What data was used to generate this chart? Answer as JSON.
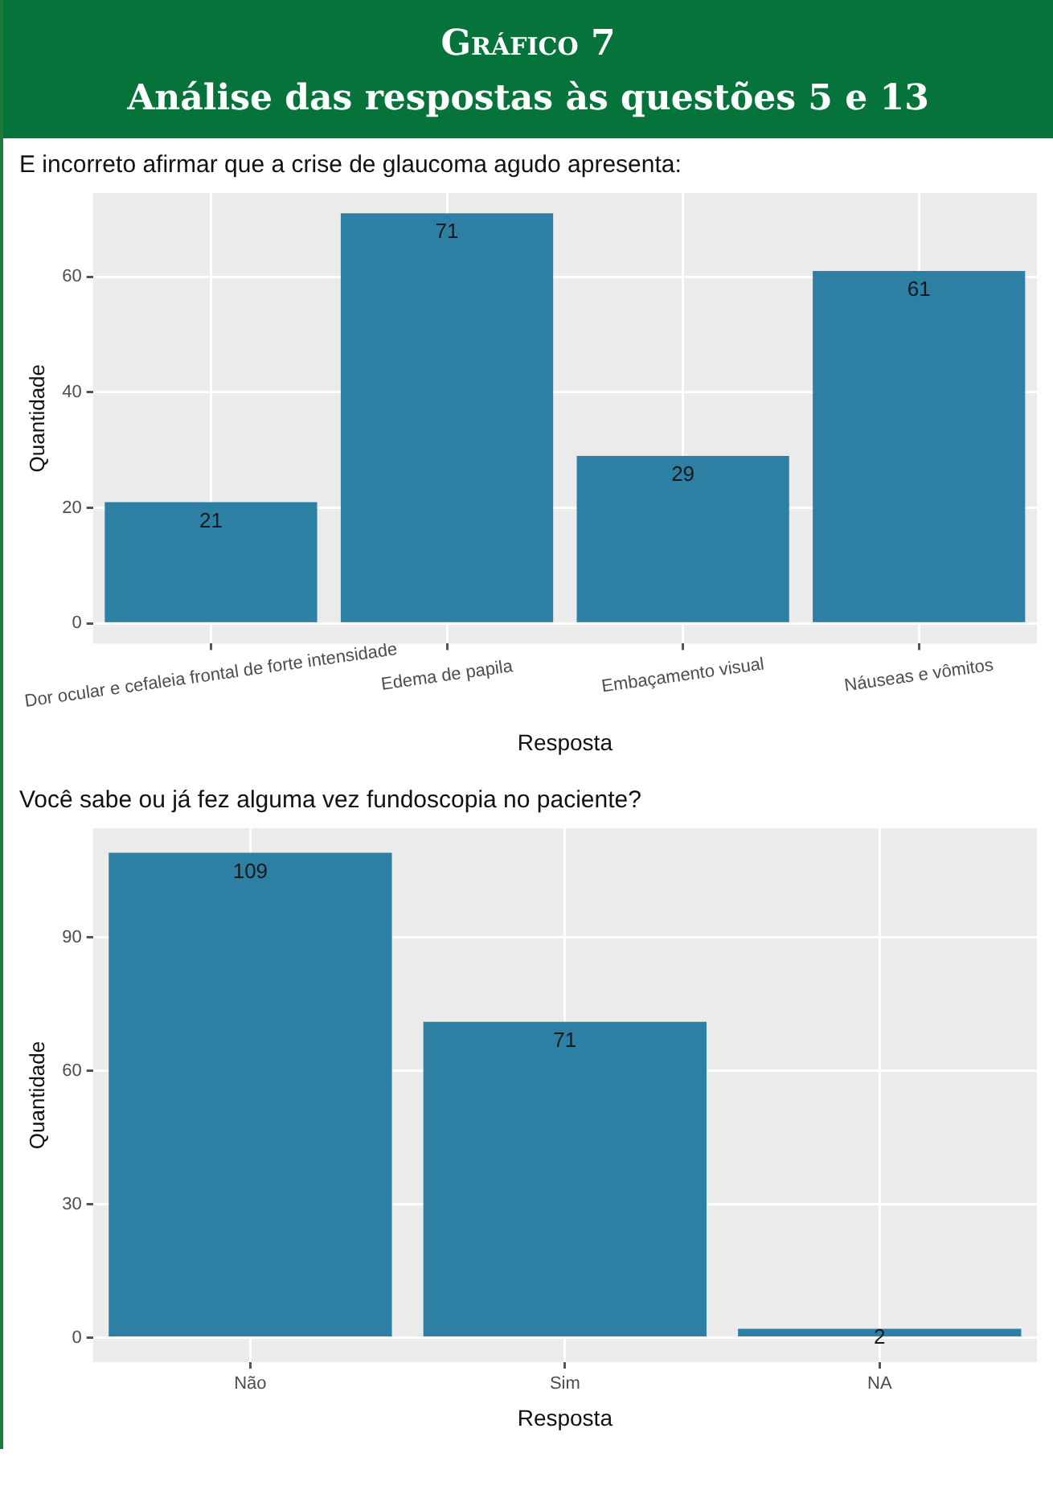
{
  "chart_data": [
    {
      "type": "bar",
      "title": "E incorreto afirmar que a crise de glaucoma agudo apresenta:",
      "annotations": [
        "Gráfico 7",
        "Análise das respostas às questões 5 e 13"
      ],
      "xlabel": "Resposta",
      "ylabel": "Quantidade",
      "categories": [
        "Dor ocular e cefaleia frontal de forte intensidade",
        "Edema de papila",
        "Embaçamento visual",
        "Náuseas e vômitos"
      ],
      "values": [
        21,
        71,
        29,
        61
      ],
      "color": "#2e7fa4",
      "ylim": [
        -3.5,
        74.5
      ],
      "yticks": [
        0,
        20,
        40,
        60
      ],
      "grid": true,
      "legend": false,
      "data_labels": true
    },
    {
      "type": "bar",
      "title": "Você sabe ou já fez alguma vez fundoscopia no paciente?",
      "xlabel": "Resposta",
      "ylabel": "Quantidade",
      "categories": [
        "Não",
        "Sim",
        "NA"
      ],
      "values": [
        109,
        71,
        2
      ],
      "color": "#2e7fa4",
      "ylim": [
        -5.5,
        114.5
      ],
      "yticks": [
        0,
        30,
        60,
        90
      ],
      "grid": true,
      "legend": false,
      "data_labels": true
    }
  ]
}
